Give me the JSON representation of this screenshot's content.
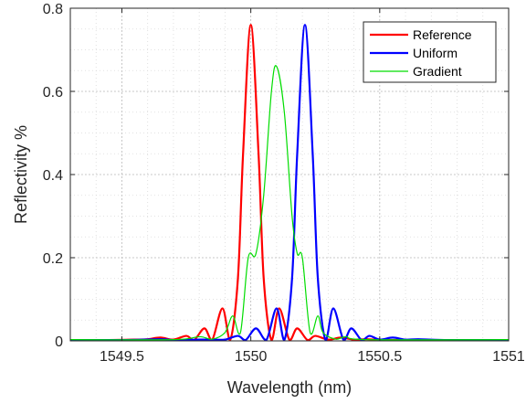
{
  "chart_data": {
    "type": "line",
    "title": "",
    "xlabel": "Wavelength (nm)",
    "ylabel": "Reflectivity %",
    "xlim": [
      1549.3,
      1551.0
    ],
    "ylim": [
      0,
      0.8
    ],
    "xticks": [
      1549.5,
      1550,
      1550.5,
      1551
    ],
    "xtick_labels": [
      "1549.5",
      "1550",
      "1550.5",
      "1551"
    ],
    "yticks": [
      0,
      0.2,
      0.4,
      0.6,
      0.8
    ],
    "ytick_labels": [
      "0",
      "0.2",
      "0.4",
      "0.6",
      "0.8"
    ],
    "grid": "major and minor, dotted",
    "legend_position": "top-right",
    "series": [
      {
        "name": "Reference",
        "color": "#ff0000",
        "points": [
          [
            1549.3,
            0.002
          ],
          [
            1549.45,
            0.002
          ],
          [
            1549.55,
            0.003
          ],
          [
            1549.6,
            0.004
          ],
          [
            1549.65,
            0.008
          ],
          [
            1549.7,
            0.003
          ],
          [
            1549.75,
            0.012
          ],
          [
            1549.78,
            0.002
          ],
          [
            1549.82,
            0.03
          ],
          [
            1549.85,
            0.002
          ],
          [
            1549.89,
            0.078
          ],
          [
            1549.92,
            0.002
          ],
          [
            1549.95,
            0.15
          ],
          [
            1549.97,
            0.45
          ],
          [
            1550.0,
            0.76
          ],
          [
            1550.03,
            0.45
          ],
          [
            1550.05,
            0.15
          ],
          [
            1550.08,
            0.002
          ],
          [
            1550.11,
            0.078
          ],
          [
            1550.15,
            0.002
          ],
          [
            1550.18,
            0.03
          ],
          [
            1550.22,
            0.002
          ],
          [
            1550.25,
            0.012
          ],
          [
            1550.3,
            0.003
          ],
          [
            1550.35,
            0.008
          ],
          [
            1550.4,
            0.003
          ],
          [
            1550.45,
            0.004
          ],
          [
            1550.55,
            0.002
          ],
          [
            1551.0,
            0.002
          ]
        ]
      },
      {
        "name": "Uniform",
        "color": "#0000ff",
        "points": [
          [
            1549.3,
            0.002
          ],
          [
            1549.5,
            0.002
          ],
          [
            1549.65,
            0.004
          ],
          [
            1549.7,
            0.002
          ],
          [
            1549.8,
            0.003
          ],
          [
            1549.85,
            0.003
          ],
          [
            1549.9,
            0.003
          ],
          [
            1549.95,
            0.012
          ],
          [
            1549.98,
            0.002
          ],
          [
            1550.02,
            0.03
          ],
          [
            1550.06,
            0.002
          ],
          [
            1550.1,
            0.078
          ],
          [
            1550.13,
            0.002
          ],
          [
            1550.16,
            0.15
          ],
          [
            1550.18,
            0.45
          ],
          [
            1550.21,
            0.76
          ],
          [
            1550.24,
            0.45
          ],
          [
            1550.26,
            0.15
          ],
          [
            1550.29,
            0.002
          ],
          [
            1550.32,
            0.078
          ],
          [
            1550.36,
            0.002
          ],
          [
            1550.39,
            0.03
          ],
          [
            1550.43,
            0.002
          ],
          [
            1550.46,
            0.012
          ],
          [
            1550.5,
            0.003
          ],
          [
            1550.55,
            0.008
          ],
          [
            1550.6,
            0.003
          ],
          [
            1550.65,
            0.004
          ],
          [
            1550.75,
            0.002
          ],
          [
            1551.0,
            0.002
          ]
        ]
      },
      {
        "name": "Gradient",
        "color": "#00dd00",
        "points": [
          [
            1549.3,
            0.003
          ],
          [
            1549.7,
            0.003
          ],
          [
            1549.8,
            0.01
          ],
          [
            1549.85,
            0.004
          ],
          [
            1549.9,
            0.02
          ],
          [
            1549.93,
            0.06
          ],
          [
            1549.96,
            0.02
          ],
          [
            1549.99,
            0.2
          ],
          [
            1550.02,
            0.21
          ],
          [
            1550.05,
            0.35
          ],
          [
            1550.08,
            0.6
          ],
          [
            1550.1,
            0.66
          ],
          [
            1550.13,
            0.55
          ],
          [
            1550.16,
            0.3
          ],
          [
            1550.18,
            0.21
          ],
          [
            1550.2,
            0.2
          ],
          [
            1550.23,
            0.02
          ],
          [
            1550.26,
            0.06
          ],
          [
            1550.28,
            0.02
          ],
          [
            1550.33,
            0.004
          ],
          [
            1550.37,
            0.01
          ],
          [
            1550.45,
            0.003
          ],
          [
            1551.0,
            0.003
          ]
        ]
      }
    ]
  }
}
